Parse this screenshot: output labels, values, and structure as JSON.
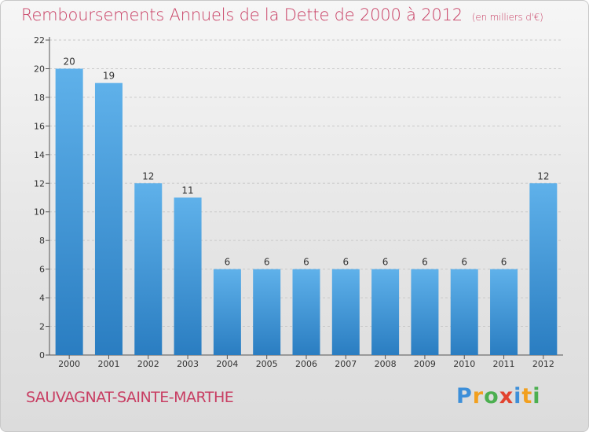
{
  "chart_data": {
    "type": "bar",
    "title": "Remboursements Annuels de la Dette de 2000 à 2012",
    "unit": "(en milliers d'€)",
    "categories": [
      "2000",
      "2001",
      "2002",
      "2003",
      "2004",
      "2005",
      "2006",
      "2007",
      "2008",
      "2009",
      "2010",
      "2011",
      "2012"
    ],
    "values": [
      20,
      19,
      12,
      11,
      6,
      6,
      6,
      6,
      6,
      6,
      6,
      6,
      12
    ],
    "data_labels": [
      "20",
      "19",
      "12",
      "11",
      "6",
      "6",
      "6",
      "6",
      "6",
      "6",
      "6",
      "6",
      "12"
    ],
    "yticks": [
      "0",
      "2",
      "4",
      "6",
      "8",
      "10",
      "12",
      "14",
      "16",
      "18",
      "20",
      "22"
    ],
    "ylim": [
      0,
      22
    ],
    "grid": true,
    "legend": "none",
    "bar_color": "#4a9fdf"
  },
  "commune": "SAUVAGNAT-SAINTE-MARTHE",
  "logo": {
    "letters": [
      "P",
      "r",
      "o",
      "x",
      "i",
      "t",
      "i"
    ],
    "colors": [
      "#3d8fd9",
      "#f2a01f",
      "#4caf50",
      "#e2432f",
      "#3d8fd9",
      "#f2a01f",
      "#4caf50"
    ]
  }
}
